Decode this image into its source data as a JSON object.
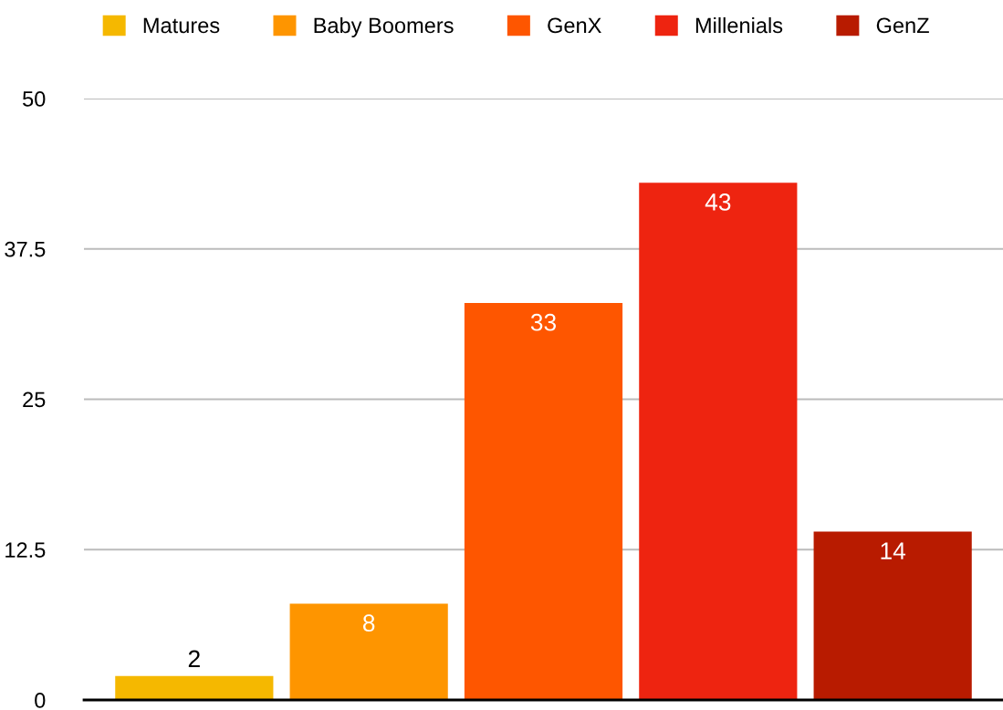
{
  "chart_data": {
    "type": "bar",
    "categories": [
      null
    ],
    "series": [
      {
        "name": "Matures",
        "color": "#f5b800",
        "values": [
          2
        ]
      },
      {
        "name": "Baby Boomers",
        "color": "#fe9500",
        "values": [
          8
        ]
      },
      {
        "name": "GenX",
        "color": "#fe5600",
        "values": [
          33
        ]
      },
      {
        "name": "Millenials",
        "color": "#ee2410",
        "values": [
          43
        ]
      },
      {
        "name": "GenZ",
        "color": "#b81b00",
        "values": [
          14
        ]
      }
    ],
    "ylim": [
      0,
      50
    ],
    "yticks": [
      0,
      12.5,
      25,
      37.5,
      50
    ],
    "grid": "y",
    "legend": "top",
    "data_labels": true,
    "tick_labels": "y"
  }
}
